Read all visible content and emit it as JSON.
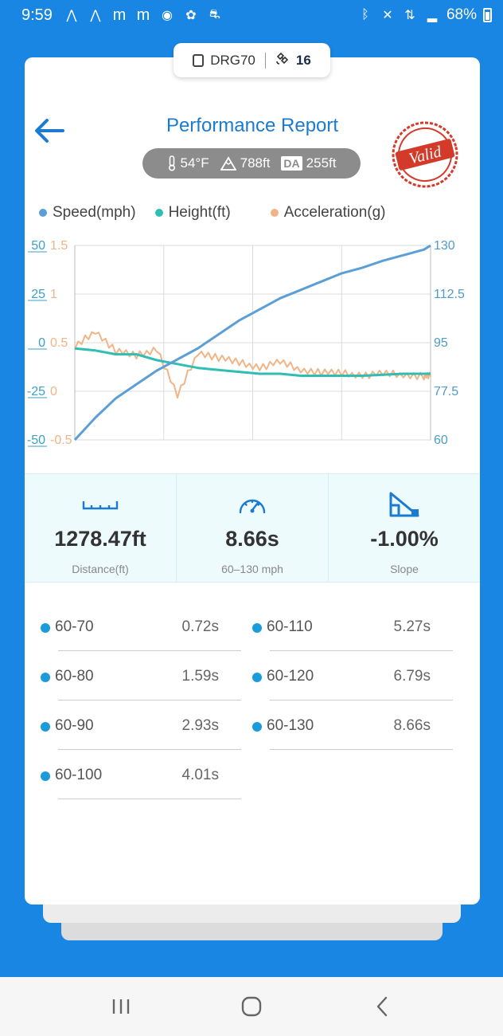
{
  "status_bar": {
    "time": "9:59",
    "battery": "68%",
    "notification_icons": [
      "a-icon",
      "a-icon",
      "m-icon",
      "m-icon",
      "spotify-icon",
      "logo-icon",
      "car-icon"
    ],
    "system_icons": [
      "bluetooth-icon",
      "mute-icon",
      "data-icon",
      "signal-icon",
      "battery-icon"
    ]
  },
  "device": {
    "name": "DRG70",
    "satellites": "16"
  },
  "header": {
    "title": "Performance Report",
    "stamp": "Valid"
  },
  "conditions": {
    "temperature": "54°F",
    "altitude": "788ft",
    "da_label": "DA",
    "density_altitude": "255ft"
  },
  "colors": {
    "speed": "#5b9fd6",
    "height": "#30bdb4",
    "acceleration": "#f0b486",
    "accent": "#1a86e3",
    "stamp": "#d43a2a"
  },
  "chart_data": {
    "type": "line",
    "legend": [
      "Speed(mph)",
      "Height(ft)",
      "Acceleration(g)"
    ],
    "legend_position": "top",
    "grid": true,
    "x": [
      0,
      0.5,
      1,
      1.5,
      2,
      2.5,
      3,
      3.5,
      4,
      4.5,
      5,
      5.5,
      6,
      6.5,
      7,
      7.5,
      8,
      8.5,
      8.66
    ],
    "x_range": [
      0,
      8.66
    ],
    "axes": {
      "height_ticks": [
        "50",
        "25",
        "0",
        "-25",
        "-50"
      ],
      "height_range": [
        -50,
        50
      ],
      "accel_ticks": [
        "1.5",
        "1",
        "0.5",
        "0",
        "-0.5"
      ],
      "accel_range": [
        -0.5,
        1.5
      ],
      "speed_ticks": [
        "130",
        "112.5",
        "95",
        "77.5",
        "60"
      ],
      "speed_range": [
        60,
        130
      ]
    },
    "series": [
      {
        "name": "Speed(mph)",
        "axis": "right",
        "values": [
          60,
          68,
          75,
          80,
          85,
          89,
          93,
          98,
          103,
          107,
          111,
          114,
          117,
          120,
          122,
          124.5,
          126.5,
          128.5,
          130
        ]
      },
      {
        "name": "Height(ft)",
        "axis": "left",
        "values": [
          -3,
          -4,
          -6,
          -6,
          -9,
          -11,
          -13,
          -14,
          -15,
          -16,
          -16,
          -17,
          -17,
          -17,
          -17,
          -16.5,
          -16,
          -16,
          -16
        ]
      },
      {
        "name": "Acceleration(g)",
        "axis": "left2",
        "values": [
          0.45,
          0.62,
          0.42,
          0.36,
          0.44,
          -0.05,
          0.4,
          0.35,
          0.29,
          0.25,
          0.3,
          0.22,
          0.2,
          0.18,
          0.17,
          0.18,
          0.17,
          0.16,
          0.15
        ]
      }
    ]
  },
  "stats": [
    {
      "icon": "ruler-icon",
      "value": "1278.47ft",
      "label": "Distance(ft)"
    },
    {
      "icon": "speedometer-icon",
      "value": "8.66s",
      "label": "60–130 mph"
    },
    {
      "icon": "slope-icon",
      "value": "-1.00%",
      "label": "Slope"
    }
  ],
  "splits": [
    {
      "label": "60-70",
      "time": "0.72s"
    },
    {
      "label": "60-80",
      "time": "1.59s"
    },
    {
      "label": "60-90",
      "time": "2.93s"
    },
    {
      "label": "60-100",
      "time": "4.01s"
    },
    {
      "label": "60-110",
      "time": "5.27s"
    },
    {
      "label": "60-120",
      "time": "6.79s"
    },
    {
      "label": "60-130",
      "time": "8.66s"
    }
  ],
  "nav": [
    "recents-button",
    "home-button",
    "back-button"
  ]
}
